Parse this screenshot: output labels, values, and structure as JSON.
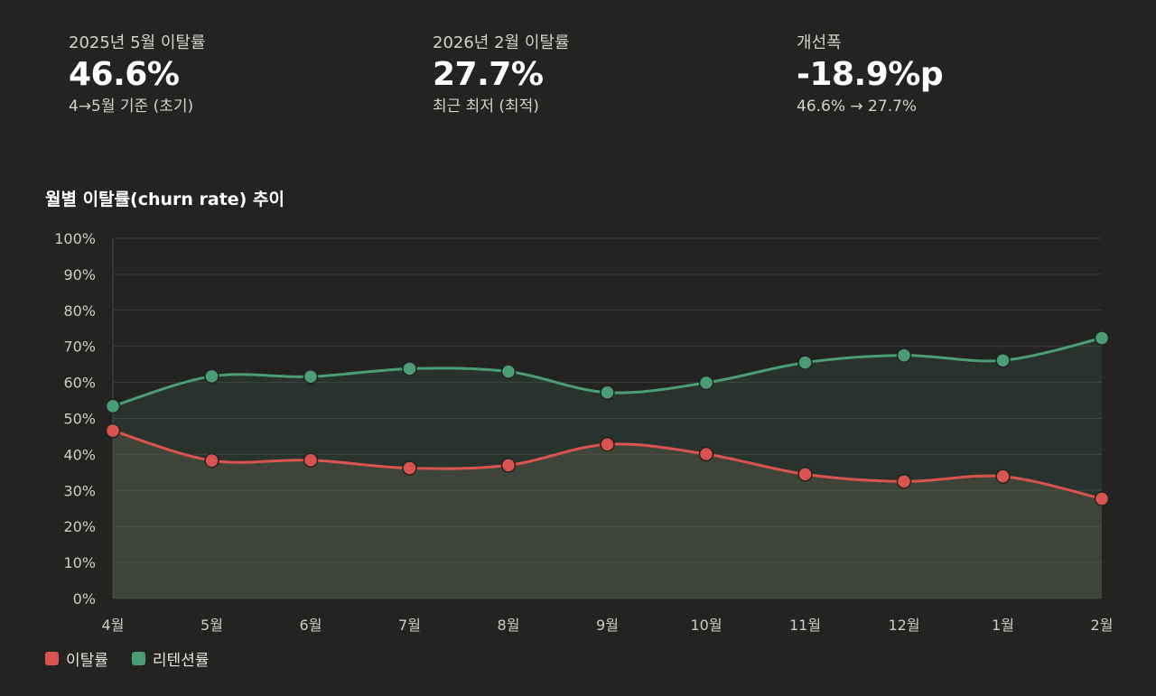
{
  "kpis": [
    {
      "label": "2025년 5월 이탈률",
      "value": "46.6%",
      "sub": "4→5월 기준 (초기)"
    },
    {
      "label": "2026년 2월 이탈률",
      "value": "27.7%",
      "sub": "최근 최저 (최적)"
    },
    {
      "label": "개선폭",
      "value": "-18.9%p",
      "sub": "46.6% → 27.7%"
    }
  ],
  "chart_data": {
    "type": "area",
    "title": "월별 이탈률(churn rate) 추이",
    "categories": [
      "4월",
      "5월",
      "6월",
      "7월",
      "8월",
      "9월",
      "10월",
      "11월",
      "12월",
      "1월",
      "2월"
    ],
    "series": [
      {
        "name": "이탈률",
        "color": "#d9534f",
        "values": [
          46.6,
          38.3,
          38.4,
          36.2,
          37.0,
          42.8,
          40.1,
          34.5,
          32.5,
          33.9,
          27.7
        ]
      },
      {
        "name": "리텐션률",
        "color": "#4a9d74",
        "values": [
          53.4,
          61.7,
          61.6,
          63.8,
          63.0,
          57.2,
          59.9,
          65.5,
          67.5,
          66.1,
          72.3
        ]
      }
    ],
    "ylim": [
      0,
      100
    ],
    "yticks": [
      "0%",
      "10%",
      "20%",
      "30%",
      "40%",
      "50%",
      "60%",
      "70%",
      "80%",
      "90%",
      "100%"
    ],
    "grid": true,
    "legend": "bottom-left"
  }
}
